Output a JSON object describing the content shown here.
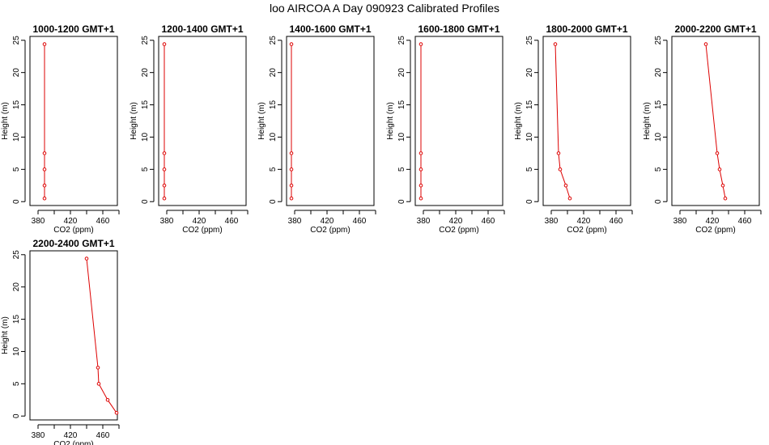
{
  "page_title": "loo AIRCOA A  Day 090923  Calibrated Profiles",
  "colors": {
    "series": "#dd0000",
    "axis": "#000000"
  },
  "chart_data": [
    {
      "type": "line",
      "title": "1000-1200 GMT+1",
      "xlabel": "CO2 (ppm)",
      "ylabel": "Height (m)",
      "xlim": [
        370,
        478
      ],
      "ylim": [
        -0.6,
        25.6
      ],
      "x_ticks": [
        380,
        400,
        420,
        440,
        460,
        480
      ],
      "x_tick_labels": [
        "380",
        "420",
        "460"
      ],
      "y_ticks": [
        0,
        5,
        10,
        15,
        20,
        25
      ],
      "series": [
        {
          "x": [
            388,
            388,
            388,
            388,
            388
          ],
          "y": [
            0.5,
            2.5,
            5,
            7.5,
            24.4
          ]
        }
      ]
    },
    {
      "type": "line",
      "title": "1200-1400 GMT+1",
      "xlabel": "CO2 (ppm)",
      "ylabel": "Height (m)",
      "xlim": [
        370,
        478
      ],
      "ylim": [
        -0.6,
        25.6
      ],
      "x_ticks": [
        380,
        400,
        420,
        440,
        460,
        480
      ],
      "x_tick_labels": [
        "380",
        "420",
        "460"
      ],
      "y_ticks": [
        0,
        5,
        10,
        15,
        20,
        25
      ],
      "series": [
        {
          "x": [
            377,
            377,
            377,
            377,
            377
          ],
          "y": [
            0.5,
            2.5,
            5,
            7.5,
            24.4
          ]
        }
      ]
    },
    {
      "type": "line",
      "title": "1400-1600 GMT+1",
      "xlabel": "CO2 (ppm)",
      "ylabel": "Height (m)",
      "xlim": [
        370,
        478
      ],
      "ylim": [
        -0.6,
        25.6
      ],
      "x_ticks": [
        380,
        400,
        420,
        440,
        460,
        480
      ],
      "x_tick_labels": [
        "380",
        "420",
        "460"
      ],
      "y_ticks": [
        0,
        5,
        10,
        15,
        20,
        25
      ],
      "series": [
        {
          "x": [
            376,
            376,
            376,
            376,
            376
          ],
          "y": [
            0.5,
            2.5,
            5,
            7.5,
            24.4
          ]
        }
      ]
    },
    {
      "type": "line",
      "title": "1600-1800 GMT+1",
      "xlabel": "CO2 (ppm)",
      "ylabel": "Height (m)",
      "xlim": [
        370,
        478
      ],
      "ylim": [
        -0.6,
        25.6
      ],
      "x_ticks": [
        380,
        400,
        420,
        440,
        460,
        480
      ],
      "x_tick_labels": [
        "380",
        "420",
        "460"
      ],
      "y_ticks": [
        0,
        5,
        10,
        15,
        20,
        25
      ],
      "series": [
        {
          "x": [
            377,
            377,
            377,
            377,
            377
          ],
          "y": [
            0.5,
            2.5,
            5,
            7.5,
            24.4
          ]
        }
      ]
    },
    {
      "type": "line",
      "title": "1800-2000 GMT+1",
      "xlabel": "CO2 (ppm)",
      "ylabel": "Height (m)",
      "xlim": [
        370,
        478
      ],
      "ylim": [
        -0.6,
        25.6
      ],
      "x_ticks": [
        380,
        400,
        420,
        440,
        460,
        480
      ],
      "x_tick_labels": [
        "380",
        "420",
        "460"
      ],
      "y_ticks": [
        0,
        5,
        10,
        15,
        20,
        25
      ],
      "series": [
        {
          "x": [
            403,
            398,
            391,
            389,
            385
          ],
          "y": [
            0.5,
            2.5,
            5,
            7.5,
            24.4
          ]
        }
      ]
    },
    {
      "type": "line",
      "title": "2000-2200 GMT+1",
      "xlabel": "CO2 (ppm)",
      "ylabel": "Height (m)",
      "xlim": [
        370,
        478
      ],
      "ylim": [
        -0.6,
        25.6
      ],
      "x_ticks": [
        380,
        400,
        420,
        440,
        460,
        480
      ],
      "x_tick_labels": [
        "380",
        "420",
        "460"
      ],
      "y_ticks": [
        0,
        5,
        10,
        15,
        20,
        25
      ],
      "series": [
        {
          "x": [
            436,
            433,
            429,
            426,
            412
          ],
          "y": [
            0.5,
            2.5,
            5,
            7.5,
            24.4
          ]
        }
      ]
    },
    {
      "type": "line",
      "title": "2200-2400 GMT+1",
      "xlabel": "CO2 (ppm)",
      "ylabel": "Height (m)",
      "xlim": [
        370,
        478
      ],
      "ylim": [
        -0.6,
        25.6
      ],
      "x_ticks": [
        380,
        400,
        420,
        440,
        460,
        480
      ],
      "x_tick_labels": [
        "380",
        "420",
        "460"
      ],
      "y_ticks": [
        0,
        5,
        10,
        15,
        20,
        25
      ],
      "series": [
        {
          "x": [
            477,
            466,
            455,
            454,
            440
          ],
          "y": [
            0.5,
            2.5,
            5,
            7.5,
            24.4
          ]
        }
      ]
    }
  ]
}
